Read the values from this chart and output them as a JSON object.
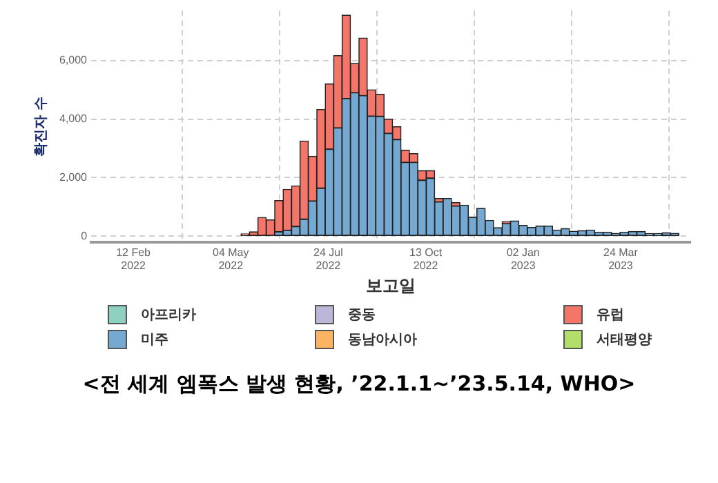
{
  "chart_data": {
    "type": "bar",
    "stacked": true,
    "xlabel": "보고일",
    "ylabel": "확진자 수",
    "annotations": [
      "<전 세계 엠폭스 발생 현황, ’22.1.1~’23.5.14, WHO>"
    ],
    "x": [
      "2022-05-16",
      "2022-05-23",
      "2022-05-30",
      "2022-06-06",
      "2022-06-13",
      "2022-06-20",
      "2022-06-27",
      "2022-07-04",
      "2022-07-11",
      "2022-07-18",
      "2022-07-25",
      "2022-08-01",
      "2022-08-08",
      "2022-08-15",
      "2022-08-22",
      "2022-08-29",
      "2022-09-05",
      "2022-09-12",
      "2022-09-19",
      "2022-09-26",
      "2022-10-03",
      "2022-10-10",
      "2022-10-17",
      "2022-10-24",
      "2022-10-31",
      "2022-11-07",
      "2022-11-14",
      "2022-11-21",
      "2022-11-28",
      "2022-12-05",
      "2022-12-12",
      "2022-12-19",
      "2022-12-26",
      "2023-01-02",
      "2023-01-09",
      "2023-01-16",
      "2023-01-23",
      "2023-01-30",
      "2023-02-06",
      "2023-02-13",
      "2023-02-20",
      "2023-02-27",
      "2023-03-06",
      "2023-03-13",
      "2023-03-20",
      "2023-03-27",
      "2023-04-03",
      "2023-04-10",
      "2023-04-17",
      "2023-04-24",
      "2023-05-01",
      "2023-05-08"
    ],
    "series": [
      {
        "name": "아프리카",
        "color": "#8fd1c0",
        "values": [
          null,
          null,
          null,
          null,
          null,
          null,
          null,
          null,
          null,
          null,
          null,
          null,
          null,
          null,
          null,
          null,
          null,
          null,
          null,
          null,
          null,
          null,
          null,
          null,
          null,
          null,
          null,
          null,
          null,
          null,
          null,
          null,
          null,
          null,
          null,
          null,
          null,
          null,
          null,
          null,
          null,
          null,
          null,
          null,
          null,
          null,
          null,
          null,
          null,
          null,
          null,
          null
        ]
      },
      {
        "name": "미주",
        "color": "#76a9d2",
        "values": [
          null,
          null,
          null,
          null,
          150,
          200,
          330,
          580,
          1200,
          1640,
          2970,
          3700,
          4700,
          4900,
          4800,
          4100,
          4090,
          3510,
          3300,
          2520,
          2520,
          1910,
          1980,
          1170,
          1290,
          1030,
          1060,
          650,
          950,
          540,
          290,
          430,
          520,
          370,
          300,
          350,
          350,
          210,
          260,
          170,
          190,
          210,
          140,
          140,
          100,
          140,
          160,
          160,
          90,
          90,
          120,
          100
        ]
      },
      {
        "name": "중동",
        "color": "#bcb6d9",
        "values": [
          null,
          null,
          null,
          null,
          null,
          null,
          null,
          null,
          null,
          null,
          null,
          null,
          null,
          null,
          null,
          null,
          null,
          null,
          null,
          null,
          null,
          null,
          null,
          null,
          null,
          null,
          null,
          null,
          null,
          null,
          null,
          null,
          null,
          null,
          null,
          null,
          null,
          null,
          null,
          null,
          null,
          null,
          null,
          null,
          null,
          null,
          null,
          null,
          null,
          null,
          null,
          null
        ]
      },
      {
        "name": "동남아시아",
        "color": "#fdb462",
        "values": [
          null,
          null,
          null,
          null,
          null,
          null,
          null,
          null,
          null,
          null,
          null,
          null,
          null,
          null,
          null,
          null,
          null,
          null,
          null,
          null,
          null,
          null,
          null,
          null,
          null,
          null,
          null,
          null,
          null,
          null,
          null,
          null,
          null,
          null,
          null,
          null,
          null,
          null,
          null,
          null,
          null,
          null,
          null,
          null,
          null,
          null,
          null,
          null,
          null,
          null,
          null,
          null
        ]
      },
      {
        "name": "유럽",
        "color": "#f4766a",
        "values": [
          80,
          150,
          640,
          560,
          1070,
          1400,
          1390,
          2670,
          1530,
          2690,
          2230,
          2470,
          2850,
          1000,
          1970,
          900,
          760,
          490,
          440,
          420,
          300,
          330,
          260,
          120,
          null,
          120,
          null,
          null,
          null,
          null,
          null,
          70,
          null,
          null,
          null,
          null,
          null,
          null,
          null,
          null,
          null,
          null,
          null,
          null,
          null,
          null,
          null,
          null,
          null,
          null,
          null,
          null
        ]
      },
      {
        "name": "서태평양",
        "color": "#b3de69",
        "values": [
          null,
          null,
          null,
          null,
          null,
          null,
          null,
          null,
          null,
          null,
          null,
          null,
          null,
          null,
          null,
          null,
          null,
          null,
          null,
          null,
          null,
          null,
          null,
          null,
          null,
          null,
          null,
          null,
          null,
          null,
          null,
          null,
          null,
          null,
          null,
          null,
          null,
          null,
          null,
          null,
          null,
          null,
          null,
          null,
          null,
          null,
          null,
          null,
          null,
          null,
          null,
          null
        ]
      }
    ],
    "xlim": [
      "2022-01-08",
      "2023-05-21"
    ],
    "xticks": [
      {
        "value": "2022-02-12",
        "label": "12 Feb\n2022"
      },
      {
        "value": "2022-05-04",
        "label": "04 May\n2022"
      },
      {
        "value": "2022-07-24",
        "label": "24 Jul\n2022"
      },
      {
        "value": "2022-10-13",
        "label": "13 Oct\n2022"
      },
      {
        "value": "2023-01-02",
        "label": "02 Jan\n2023"
      },
      {
        "value": "2023-03-24",
        "label": "24 Mar\n2023"
      }
    ],
    "ylim": [
      -200,
      7700
    ],
    "yticks": [
      0,
      {
        "value": 2000,
        "label": "2,000"
      },
      {
        "value": 4000,
        "label": "4,000"
      },
      {
        "value": 6000,
        "label": "6,000"
      }
    ],
    "grid": true,
    "legend": "bottom"
  }
}
